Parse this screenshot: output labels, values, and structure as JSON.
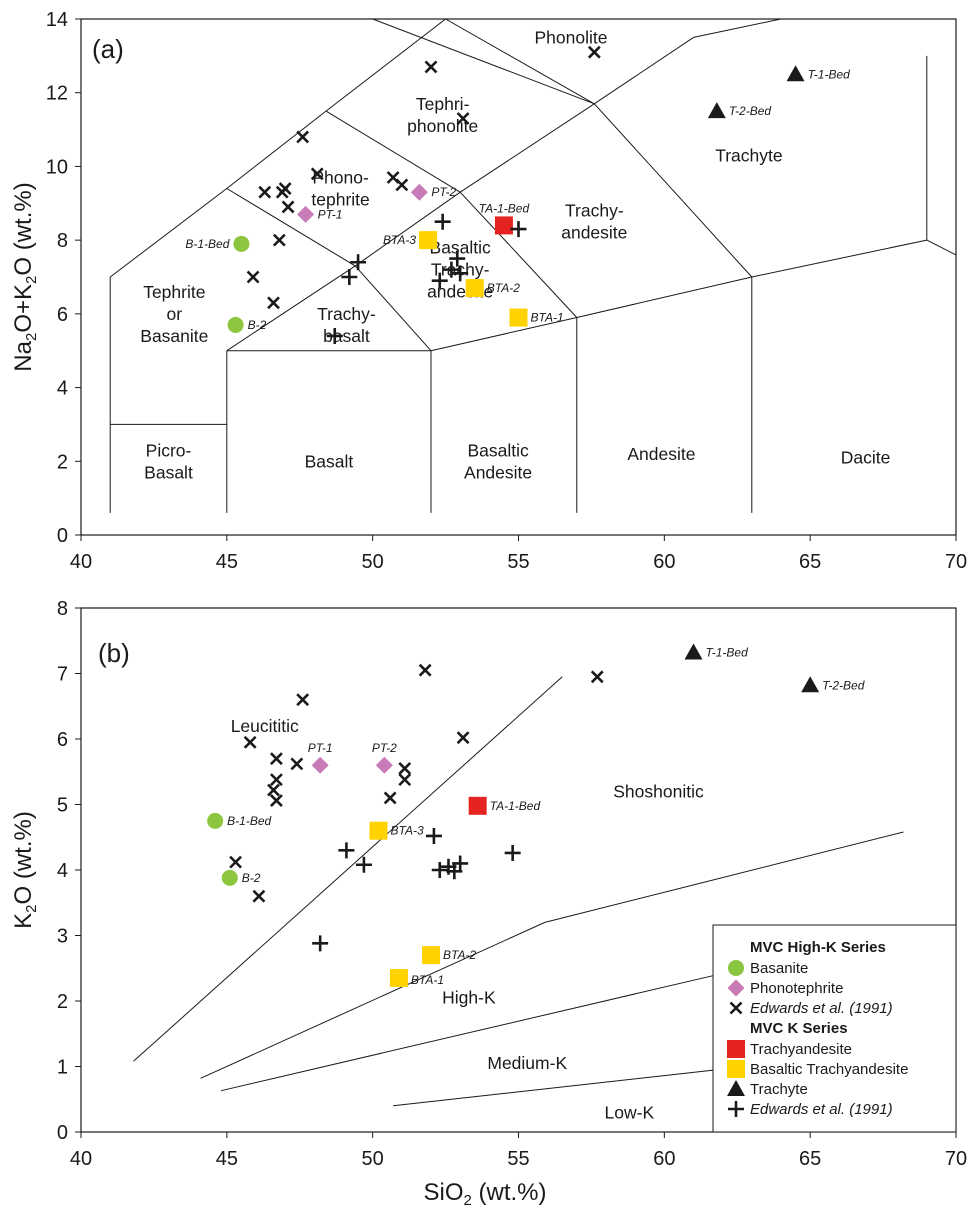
{
  "chart_data": [
    {
      "type": "scatter",
      "panel_label": "(a)",
      "xlabel": "SiO2 (wt.%)",
      "ylabel": "Na2O+K2O (wt.%)",
      "xlim": [
        40,
        70
      ],
      "ylim": [
        0,
        14
      ],
      "x_ticks": [
        "40",
        "45",
        "50",
        "55",
        "60",
        "65",
        "70"
      ],
      "y_ticks": [
        "0",
        "2",
        "4",
        "6",
        "8",
        "10",
        "12",
        "14"
      ],
      "fields": [
        {
          "lines": [
            "Picro-",
            "Basalt"
          ],
          "x": 43,
          "y": 2.0
        },
        {
          "lines": [
            "Basalt"
          ],
          "x": 48.5,
          "y": 2.0
        },
        {
          "lines": [
            "Basaltic",
            "Andesite"
          ],
          "x": 54.3,
          "y": 2.0
        },
        {
          "lines": [
            "Andesite"
          ],
          "x": 59.9,
          "y": 2.2
        },
        {
          "lines": [
            "Dacite"
          ],
          "x": 66.9,
          "y": 2.1
        },
        {
          "lines": [
            "Tephrite",
            "or",
            "Basanite"
          ],
          "x": 43.2,
          "y": 6.0
        },
        {
          "lines": [
            "Trachy-",
            "basalt"
          ],
          "x": 49.1,
          "y": 5.7
        },
        {
          "lines": [
            "Basaltic",
            "Trachy-",
            "andesite"
          ],
          "x": 53.0,
          "y": 7.2
        },
        {
          "lines": [
            "Trachy-",
            "andesite"
          ],
          "x": 57.6,
          "y": 8.5
        },
        {
          "lines": [
            "Trachyte"
          ],
          "x": 62.9,
          "y": 10.3
        },
        {
          "lines": [
            "Phono-",
            "tephrite"
          ],
          "x": 48.9,
          "y": 9.4
        },
        {
          "lines": [
            "Tephri-",
            "phonolite"
          ],
          "x": 52.4,
          "y": 11.4
        },
        {
          "lines": [
            "Phonolite"
          ],
          "x": 56.8,
          "y": 13.5
        }
      ],
      "series": [
        {
          "name": "Basanite",
          "color": "#8cc63f",
          "marker": "circle",
          "points": [
            {
              "x": 45.5,
              "y": 7.9,
              "label": "B-1-Bed",
              "pos": "left"
            },
            {
              "x": 45.3,
              "y": 5.7,
              "label": "B-2",
              "pos": "right"
            }
          ]
        },
        {
          "name": "Phonotephrite",
          "color": "#c97bb8",
          "marker": "diamond",
          "points": [
            {
              "x": 47.7,
              "y": 8.7,
              "label": "PT-1",
              "pos": "right"
            },
            {
              "x": 51.6,
              "y": 9.3,
              "label": "PT-2",
              "pos": "right"
            }
          ]
        },
        {
          "name": "Edwards et al. (1991)",
          "color": "#1a1a1a",
          "marker": "x",
          "points": [
            {
              "x": 52.0,
              "y": 12.7
            },
            {
              "x": 53.1,
              "y": 11.3
            },
            {
              "x": 57.6,
              "y": 13.1
            },
            {
              "x": 47.6,
              "y": 10.8
            },
            {
              "x": 48.1,
              "y": 9.8
            },
            {
              "x": 50.7,
              "y": 9.7
            },
            {
              "x": 51.0,
              "y": 9.5
            },
            {
              "x": 47.0,
              "y": 9.4
            },
            {
              "x": 46.9,
              "y": 9.3
            },
            {
              "x": 46.3,
              "y": 9.3
            },
            {
              "x": 47.1,
              "y": 8.9
            },
            {
              "x": 46.8,
              "y": 8.0
            },
            {
              "x": 45.9,
              "y": 7.0
            },
            {
              "x": 46.6,
              "y": 6.3
            }
          ]
        },
        {
          "name": "Trachyandesite",
          "color": "#e52421",
          "marker": "square",
          "points": [
            {
              "x": 54.5,
              "y": 8.4,
              "label": "TA-1-Bed",
              "pos": "above"
            }
          ]
        },
        {
          "name": "Basaltic Trachyandesite",
          "color": "#ffd200",
          "marker": "square",
          "points": [
            {
              "x": 51.9,
              "y": 8.0,
              "label": "BTA-3",
              "pos": "left"
            },
            {
              "x": 53.5,
              "y": 6.7,
              "label": "BTA-2",
              "pos": "right"
            },
            {
              "x": 55.0,
              "y": 5.9,
              "label": "BTA-1",
              "pos": "right"
            }
          ]
        },
        {
          "name": "Trachyte",
          "color": "#1a1a1a",
          "marker": "triangle",
          "points": [
            {
              "x": 64.5,
              "y": 12.5,
              "label": "T-1-Bed",
              "pos": "right"
            },
            {
              "x": 61.8,
              "y": 11.5,
              "label": "T-2-Bed",
              "pos": "right"
            }
          ]
        },
        {
          "name": "Edwards et al. (1991)",
          "color": "#1a1a1a",
          "marker": "plus",
          "points": [
            {
              "x": 52.4,
              "y": 8.5
            },
            {
              "x": 55.0,
              "y": 8.3
            },
            {
              "x": 49.5,
              "y": 7.4
            },
            {
              "x": 49.2,
              "y": 7.0
            },
            {
              "x": 52.9,
              "y": 7.5
            },
            {
              "x": 53.0,
              "y": 7.1
            },
            {
              "x": 52.7,
              "y": 7.2
            },
            {
              "x": 52.3,
              "y": 6.9
            },
            {
              "x": 48.7,
              "y": 5.4
            }
          ]
        }
      ]
    },
    {
      "type": "scatter",
      "panel_label": "(b)",
      "xlabel": "SiO2 (wt.%)",
      "ylabel": "K2O (wt.%)",
      "xlim": [
        40,
        70
      ],
      "ylim": [
        0,
        8
      ],
      "x_ticks": [
        "40",
        "45",
        "50",
        "55",
        "60",
        "65",
        "70"
      ],
      "y_ticks": [
        "0",
        "1",
        "2",
        "3",
        "4",
        "5",
        "6",
        "7",
        "8"
      ],
      "fields": [
        {
          "lines": [
            "Leucititic"
          ],
          "x": 46.3,
          "y": 6.2
        },
        {
          "lines": [
            "Shoshonitic"
          ],
          "x": 59.8,
          "y": 5.2
        },
        {
          "lines": [
            "High-K"
          ],
          "x": 53.3,
          "y": 2.05
        },
        {
          "lines": [
            "Medium-K"
          ],
          "x": 55.3,
          "y": 1.05
        },
        {
          "lines": [
            "Low-K"
          ],
          "x": 58.8,
          "y": 0.3
        }
      ],
      "series": [
        {
          "name": "Basanite",
          "color": "#8cc63f",
          "marker": "circle",
          "points": [
            {
              "x": 44.6,
              "y": 4.75,
              "label": "B-1-Bed",
              "pos": "right"
            },
            {
              "x": 45.1,
              "y": 3.88,
              "label": "B-2",
              "pos": "right"
            }
          ]
        },
        {
          "name": "Phonotephrite",
          "color": "#c97bb8",
          "marker": "diamond",
          "points": [
            {
              "x": 48.2,
              "y": 5.6,
              "label": "PT-1",
              "pos": "above"
            },
            {
              "x": 50.4,
              "y": 5.6,
              "label": "PT-2",
              "pos": "above"
            }
          ]
        },
        {
          "name": "Edwards et al. (1991)",
          "color": "#1a1a1a",
          "marker": "x",
          "points": [
            {
              "x": 51.8,
              "y": 7.05
            },
            {
              "x": 57.7,
              "y": 6.95
            },
            {
              "x": 47.6,
              "y": 6.6
            },
            {
              "x": 45.8,
              "y": 5.95
            },
            {
              "x": 53.1,
              "y": 6.02
            },
            {
              "x": 46.7,
              "y": 5.7
            },
            {
              "x": 47.4,
              "y": 5.62
            },
            {
              "x": 51.1,
              "y": 5.55
            },
            {
              "x": 51.1,
              "y": 5.38
            },
            {
              "x": 46.7,
              "y": 5.38
            },
            {
              "x": 46.6,
              "y": 5.22
            },
            {
              "x": 50.6,
              "y": 5.1
            },
            {
              "x": 46.7,
              "y": 5.06
            },
            {
              "x": 45.3,
              "y": 4.12
            },
            {
              "x": 46.1,
              "y": 3.6
            }
          ]
        },
        {
          "name": "Trachyandesite",
          "color": "#e52421",
          "marker": "square",
          "points": [
            {
              "x": 53.6,
              "y": 4.98,
              "label": "TA-1-Bed",
              "pos": "right"
            }
          ]
        },
        {
          "name": "Basaltic Trachyandesite",
          "color": "#ffd200",
          "marker": "square",
          "points": [
            {
              "x": 50.2,
              "y": 4.6,
              "label": "BTA-3",
              "pos": "right"
            },
            {
              "x": 52.0,
              "y": 2.7,
              "label": "BTA-2",
              "pos": "right"
            },
            {
              "x": 50.9,
              "y": 2.35,
              "label": "BTA-1",
              "pos": "belowright"
            }
          ]
        },
        {
          "name": "Trachyte",
          "color": "#1a1a1a",
          "marker": "triangle",
          "points": [
            {
              "x": 61.0,
              "y": 7.32,
              "label": "T-1-Bed",
              "pos": "right"
            },
            {
              "x": 65.0,
              "y": 6.82,
              "label": "T-2-Bed",
              "pos": "right"
            }
          ]
        },
        {
          "name": "Edwards et al. (1991)",
          "color": "#1a1a1a",
          "marker": "plus",
          "points": [
            {
              "x": 52.1,
              "y": 4.52
            },
            {
              "x": 49.1,
              "y": 4.3
            },
            {
              "x": 54.8,
              "y": 4.26
            },
            {
              "x": 49.7,
              "y": 4.08
            },
            {
              "x": 53.0,
              "y": 4.1
            },
            {
              "x": 52.6,
              "y": 4.05
            },
            {
              "x": 52.3,
              "y": 4.0
            },
            {
              "x": 52.8,
              "y": 3.98
            },
            {
              "x": 48.2,
              "y": 2.88
            }
          ]
        }
      ]
    }
  ],
  "legend": {
    "groups": [
      {
        "header": "MVC High-K Series",
        "items": [
          {
            "label": "Basanite",
            "marker": "circle",
            "color": "#8cc63f",
            "italic": false
          },
          {
            "label": "Phonotephrite",
            "marker": "diamond",
            "color": "#c97bb8",
            "italic": false
          },
          {
            "label": "Edwards et al. (1991)",
            "marker": "x",
            "color": "#1a1a1a",
            "italic": true
          }
        ]
      },
      {
        "header": "MVC K Series",
        "items": [
          {
            "label": "Trachyandesite",
            "marker": "square",
            "color": "#e52421",
            "italic": false
          },
          {
            "label": "Basaltic Trachyandesite",
            "marker": "square",
            "color": "#ffd200",
            "italic": false
          },
          {
            "label": "Trachyte",
            "marker": "triangle",
            "color": "#1a1a1a",
            "italic": false
          },
          {
            "label": "Edwards et al. (1991)",
            "marker": "plus",
            "color": "#1a1a1a",
            "italic": true
          }
        ]
      }
    ]
  }
}
